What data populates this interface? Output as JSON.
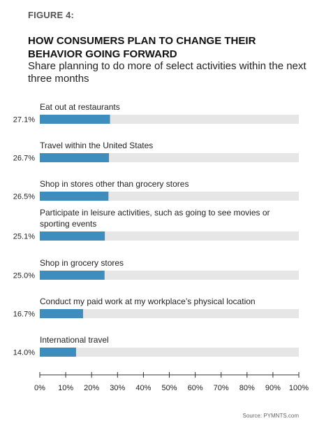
{
  "header": {
    "figure_label": "FIGURE 4:",
    "title": "HOW CONSUMERS PLAN TO CHANGE THEIR BEHAVIOR GOING FORWARD",
    "subtitle": "Share planning to do more of select activities within the next three months"
  },
  "source": "Source: PYMNTS.com",
  "colors": {
    "bar": "#3d8dbf",
    "track": "#e6e6e6",
    "axis": "#333333"
  },
  "chart_data": {
    "type": "bar",
    "orientation": "horizontal",
    "categories": [
      "Eat out at restaurants",
      "Travel within the United States",
      "Shop in stores other than grocery stores",
      "Participate in leisure activities, such as going to see movies or sporting events",
      "Shop in grocery stores",
      "Conduct my paid work at my workplace’s physical location",
      "International travel"
    ],
    "category_lines": [
      [
        "Eat out at restaurants"
      ],
      [
        "Travel within the United States"
      ],
      [
        "Shop in stores other than grocery stores"
      ],
      [
        "Participate in leisure activities, such as going to see movies or",
        "sporting events"
      ],
      [
        "Shop in grocery stores"
      ],
      [
        "Conduct my paid work at my workplace’s physical location"
      ],
      [
        "International travel"
      ]
    ],
    "values": [
      27.1,
      26.7,
      26.5,
      25.1,
      25.0,
      16.7,
      14.0
    ],
    "value_labels": [
      "27.1%",
      "26.7%",
      "26.5%",
      "25.1%",
      "25.0%",
      "16.7%",
      "14.0%"
    ],
    "xlim": [
      0,
      100
    ],
    "xticks": [
      0,
      10,
      20,
      30,
      40,
      50,
      60,
      70,
      80,
      90,
      100
    ],
    "xtick_labels": [
      "0%",
      "10%",
      "20%",
      "30%",
      "40%",
      "50%",
      "60%",
      "70%",
      "80%",
      "90%",
      "100%"
    ],
    "grid": false,
    "legend": "none"
  }
}
